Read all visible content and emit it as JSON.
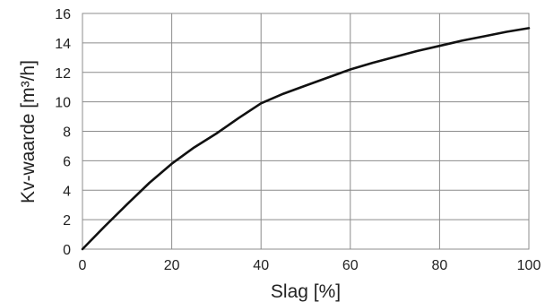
{
  "chart_data": {
    "type": "line",
    "title": "",
    "xlabel": "Slag [%]",
    "ylabel": "Kv-waarde  [m³/h]",
    "xlim": [
      0,
      100
    ],
    "ylim": [
      0,
      16
    ],
    "x_ticks": [
      "0",
      "20",
      "40",
      "60",
      "80",
      "100"
    ],
    "y_ticks": [
      "0",
      "2",
      "4",
      "6",
      "8",
      "10",
      "12",
      "14",
      "16"
    ],
    "grid": true,
    "series": [
      {
        "x": [
          0,
          5,
          10,
          15,
          20,
          25,
          30,
          35,
          40,
          45,
          50,
          55,
          60,
          65,
          70,
          75,
          80,
          85,
          90,
          95,
          100
        ],
        "y": [
          0,
          1.55,
          3.05,
          4.5,
          5.8,
          6.9,
          7.85,
          8.9,
          9.9,
          10.55,
          11.1,
          11.65,
          12.2,
          12.65,
          13.05,
          13.45,
          13.8,
          14.15,
          14.45,
          14.75,
          15.0
        ]
      }
    ],
    "colors": {
      "line": "#111111",
      "grid": "#8c8c8c"
    }
  }
}
